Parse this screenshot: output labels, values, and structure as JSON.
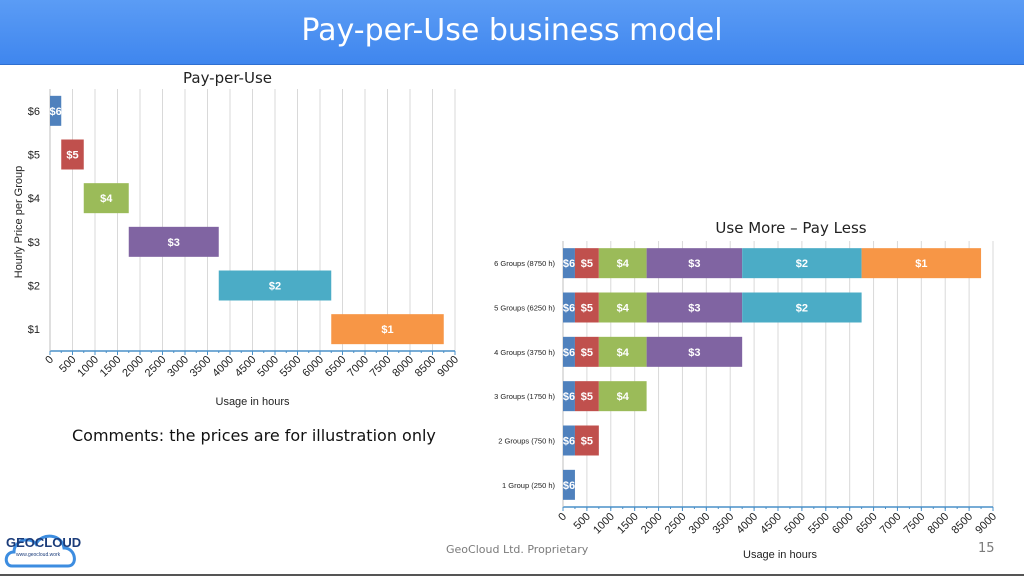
{
  "slide": {
    "title": "Pay-per-Use business model",
    "comment": "Comments: the prices are for illustration only",
    "footer_company": "GeoCloud Ltd. Proprietary",
    "page_number": "15",
    "logo_text": "GEOCLOUD",
    "logo_subtext": "www.geocloud.work"
  },
  "colors": {
    "banner": "#4a90f0",
    "tier_6": "#4f81bd",
    "tier_5": "#c0504d",
    "tier_4": "#9bbb59",
    "tier_3": "#8064a2",
    "tier_2": "#4bacc6",
    "tier_1": "#f79646"
  },
  "chart_data": [
    {
      "type": "bar",
      "orientation": "horizontal-floating",
      "title": "Pay-per-Use",
      "xlabel": "Usage in hours",
      "ylabel": "Hourly Price per Group",
      "xlim": [
        0,
        9000
      ],
      "x_ticks": [
        "0",
        "500",
        "1000",
        "1500",
        "2000",
        "2500",
        "3000",
        "3500",
        "4000",
        "4500",
        "5000",
        "5500",
        "6000",
        "6500",
        "7000",
        "7500",
        "8000",
        "8500",
        "9000"
      ],
      "categories": [
        "$6",
        "$5",
        "$4",
        "$3",
        "$2",
        "$1"
      ],
      "bars": [
        {
          "category": "$6",
          "start": 0,
          "end": 250,
          "label": "$6"
        },
        {
          "category": "$5",
          "start": 250,
          "end": 750,
          "label": "$5"
        },
        {
          "category": "$4",
          "start": 750,
          "end": 1750,
          "label": "$4"
        },
        {
          "category": "$3",
          "start": 1750,
          "end": 3750,
          "label": "$3"
        },
        {
          "category": "$2",
          "start": 3750,
          "end": 6250,
          "label": "$2"
        },
        {
          "category": "$1",
          "start": 6250,
          "end": 8750,
          "label": "$1"
        }
      ],
      "grid": true
    },
    {
      "type": "bar",
      "orientation": "horizontal-stacked",
      "title": "Use More – Pay Less",
      "xlabel": "Usage in hours",
      "xlim": [
        0,
        9000
      ],
      "x_ticks": [
        "0",
        "500",
        "1000",
        "1500",
        "2000",
        "2500",
        "3000",
        "3500",
        "4000",
        "4500",
        "5000",
        "5500",
        "6000",
        "6500",
        "7000",
        "7500",
        "8000",
        "8500",
        "9000"
      ],
      "categories": [
        "6 Groups (8750 h)",
        "5 Groups (6250 h)",
        "4 Groups (3750 h)",
        "3 Groups (1750 h)",
        "2 Groups (750 h)",
        "1 Group (250 h)"
      ],
      "segment_labels": [
        "$6",
        "$5",
        "$4",
        "$3",
        "$2",
        "$1"
      ],
      "segment_hours": [
        250,
        500,
        1000,
        2000,
        2500,
        2500
      ],
      "segments_per_row": [
        6,
        5,
        4,
        3,
        2,
        1
      ],
      "grid": true
    }
  ]
}
